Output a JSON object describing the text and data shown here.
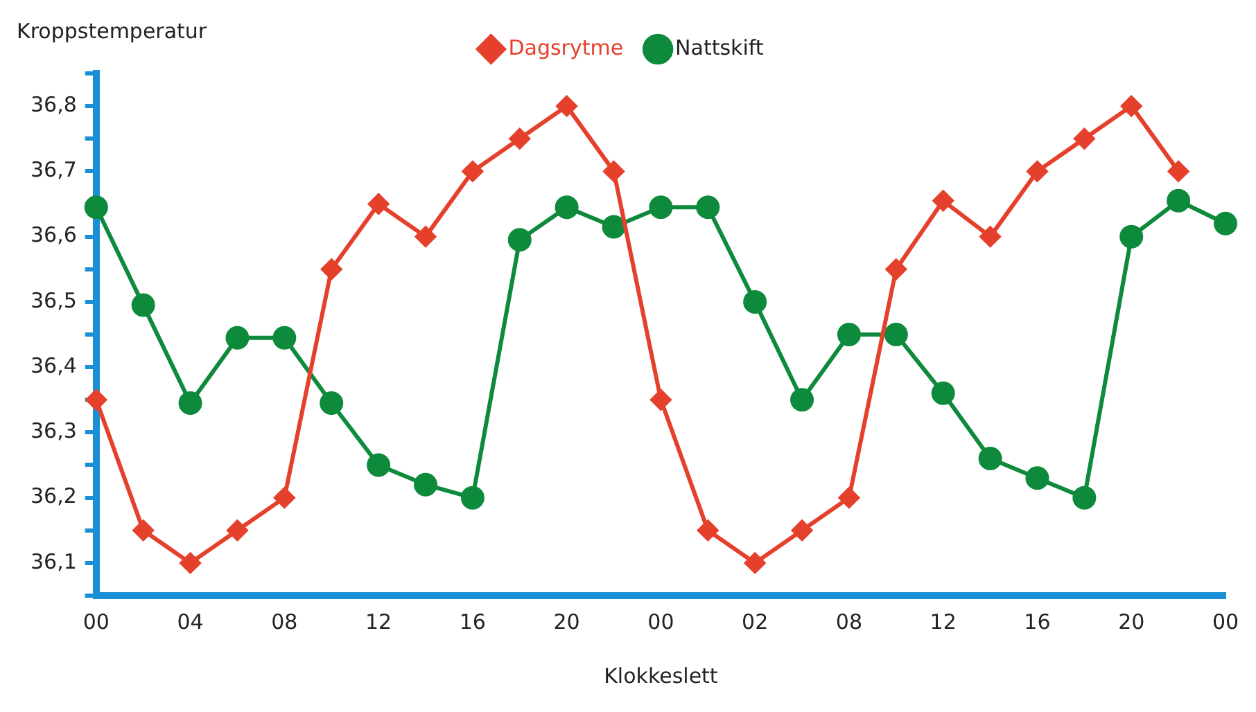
{
  "chart_data": {
    "type": "line",
    "xlabel": "Klokkeslett",
    "ylabel": "Kroppstemperatur",
    "categories": [
      "00",
      null,
      "04",
      null,
      "08",
      null,
      "12",
      null,
      "16",
      null,
      "20",
      null,
      "00",
      null,
      "02",
      null,
      "08",
      null,
      "12",
      null,
      "16",
      null,
      "20",
      null,
      "00"
    ],
    "series": [
      {
        "name": "Dagsrytme",
        "color": "#e5402b",
        "marker": "diamond",
        "values": [
          36.35,
          36.15,
          36.1,
          36.15,
          36.2,
          36.55,
          36.65,
          36.6,
          36.7,
          36.75,
          36.8,
          36.7,
          36.35,
          36.15,
          36.1,
          36.15,
          36.2,
          36.55,
          36.655,
          36.6,
          36.7,
          36.75,
          36.8,
          36.7,
          null
        ]
      },
      {
        "name": "Nattskift",
        "color": "#0e8a3c",
        "marker": "circle",
        "values": [
          36.645,
          36.495,
          36.345,
          36.445,
          36.445,
          36.345,
          36.25,
          36.22,
          36.2,
          36.595,
          36.645,
          36.615,
          36.645,
          36.645,
          36.5,
          36.35,
          36.45,
          36.45,
          36.36,
          36.26,
          36.23,
          36.2,
          36.6,
          36.655,
          36.62
        ]
      }
    ],
    "ylim": [
      36.05,
      36.85
    ],
    "yticks": [
      {
        "value": 36.05,
        "label": null
      },
      {
        "value": 36.1,
        "label": "36,1"
      },
      {
        "value": 36.15,
        "label": null
      },
      {
        "value": 36.2,
        "label": "36,2"
      },
      {
        "value": 36.25,
        "label": null
      },
      {
        "value": 36.3,
        "label": "36,3"
      },
      {
        "value": 36.35,
        "label": null
      },
      {
        "value": 36.4,
        "label": "36,4"
      },
      {
        "value": 36.45,
        "label": null
      },
      {
        "value": 36.5,
        "label": "36,5"
      },
      {
        "value": 36.55,
        "label": null
      },
      {
        "value": 36.6,
        "label": "36,6"
      },
      {
        "value": 36.65,
        "label": null
      },
      {
        "value": 36.7,
        "label": "36,7"
      },
      {
        "value": 36.75,
        "label": null
      },
      {
        "value": 36.8,
        "label": "36,8"
      },
      {
        "value": 36.85,
        "label": null
      }
    ],
    "legend": "top",
    "grid": false,
    "line_style": "solid"
  }
}
